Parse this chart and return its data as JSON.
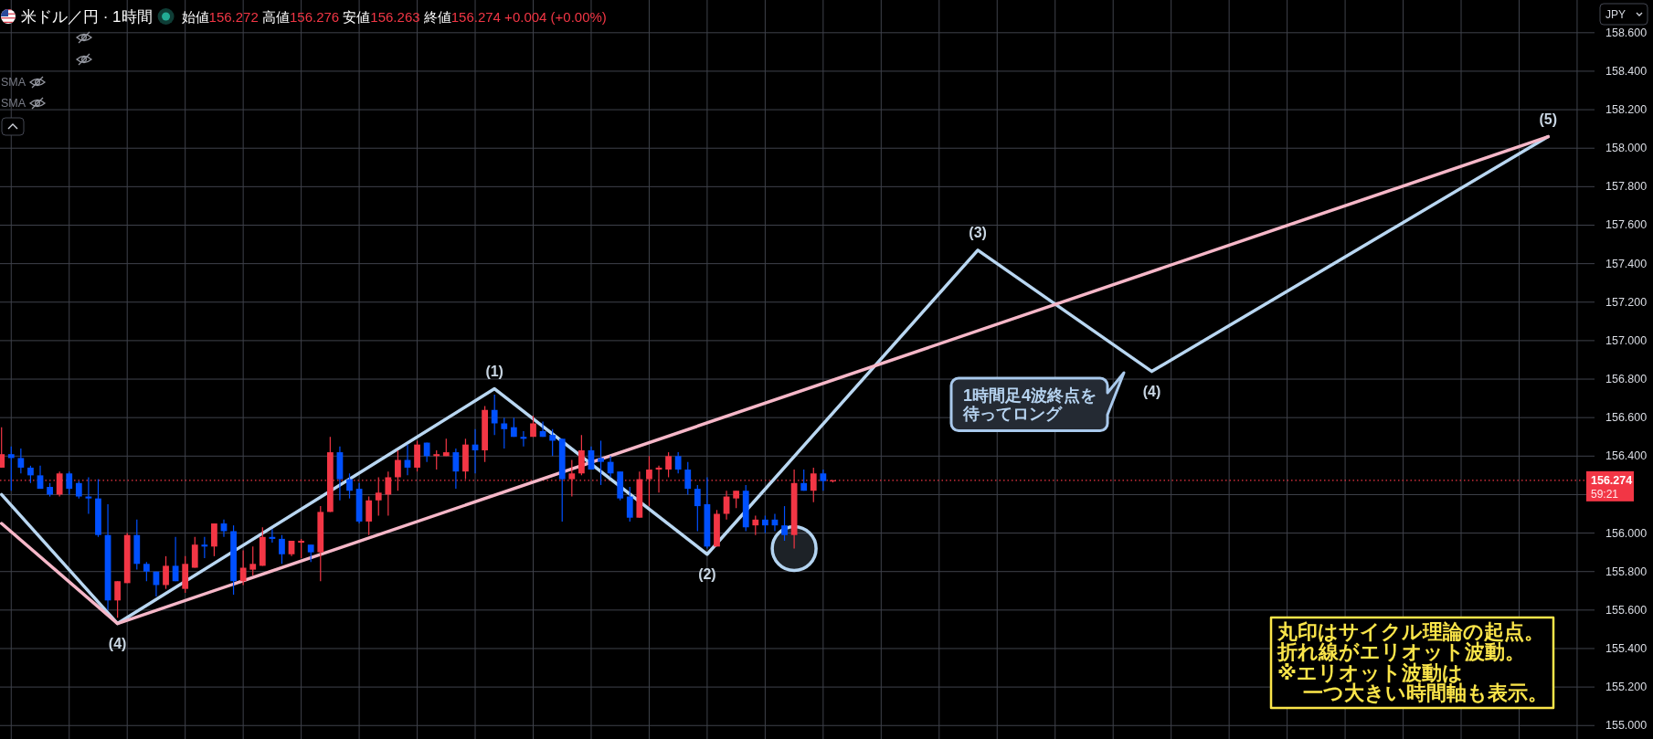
{
  "chart_data": {
    "type": "candlestick",
    "title": "米ドル／円 · 1時間",
    "subtitle": "始値156.272 高値156.276 安値156.263 終値156.274 +0.004 (+0.00%)",
    "ylabel": "JPY",
    "categories": [
      null,
      null,
      null,
      null,
      null,
      null,
      null,
      null,
      null,
      null,
      null,
      null,
      null,
      null,
      null,
      null,
      null,
      null,
      null,
      null,
      null,
      null,
      null,
      null,
      null,
      null,
      null,
      null,
      null,
      null,
      null,
      null,
      null,
      null,
      null,
      null,
      null,
      null,
      null,
      null,
      null,
      null,
      null,
      null,
      null,
      null,
      null,
      null,
      null,
      null,
      null,
      null,
      null,
      null,
      null,
      null,
      null,
      null,
      null,
      null,
      null,
      null,
      null,
      null,
      null,
      null,
      null,
      null,
      null,
      null,
      null,
      null,
      null,
      null,
      null,
      null,
      null,
      null,
      null,
      null,
      null,
      null,
      null,
      null,
      null,
      null,
      null,
      null,
      null,
      null,
      null,
      null,
      null,
      null,
      null,
      null,
      null,
      null,
      null,
      null,
      null,
      null,
      null,
      null,
      null,
      null,
      null,
      null,
      null,
      null,
      null,
      null,
      null,
      null,
      null,
      null,
      null,
      null,
      null,
      null,
      null,
      null,
      null,
      null,
      null,
      null,
      null,
      null,
      null,
      null,
      null,
      null,
      null,
      null,
      null,
      null,
      null,
      null,
      null,
      null,
      null,
      null,
      null,
      null,
      null,
      null,
      null,
      null,
      null,
      null,
      null,
      null,
      null,
      null,
      null,
      null,
      null,
      null,
      null,
      null,
      null,
      null,
      null,
      null,
      null
    ],
    "ohlc": [
      [
        156.34,
        156.55,
        156.34,
        156.41
      ],
      [
        156.41,
        156.45,
        156.22,
        156.39
      ],
      [
        156.39,
        156.44,
        156.31,
        156.34
      ],
      [
        156.34,
        156.35,
        156.26,
        156.3
      ],
      [
        156.3,
        156.35,
        156.23,
        156.23
      ],
      [
        156.24,
        156.26,
        156.19,
        156.2
      ],
      [
        156.2,
        156.32,
        156.19,
        156.31
      ],
      [
        156.31,
        156.32,
        156.2,
        156.23
      ],
      [
        156.26,
        156.27,
        156.18,
        156.19
      ],
      [
        156.19,
        156.29,
        156.1,
        156.18
      ],
      [
        156.18,
        156.28,
        155.98,
        155.99
      ],
      [
        155.99,
        156.15,
        155.6,
        155.65
      ],
      [
        155.65,
        155.75,
        155.56,
        155.75
      ],
      [
        155.74,
        156.0,
        155.74,
        155.99
      ],
      [
        155.99,
        156.07,
        155.81,
        155.84
      ],
      [
        155.84,
        155.85,
        155.75,
        155.8
      ],
      [
        155.8,
        155.8,
        155.67,
        155.73
      ],
      [
        155.73,
        155.88,
        155.71,
        155.83
      ],
      [
        155.83,
        155.98,
        155.75,
        155.75
      ],
      [
        155.71,
        155.88,
        155.69,
        155.84
      ],
      [
        155.82,
        155.98,
        155.82,
        155.94
      ],
      [
        155.94,
        155.98,
        155.87,
        155.93
      ],
      [
        155.93,
        156.05,
        155.88,
        156.05
      ],
      [
        156.05,
        156.07,
        155.98,
        156.01
      ],
      [
        156.01,
        156.04,
        155.68,
        155.75
      ],
      [
        155.75,
        155.91,
        155.73,
        155.82
      ],
      [
        155.81,
        155.93,
        155.78,
        155.84
      ],
      [
        155.83,
        156.03,
        155.83,
        155.98
      ],
      [
        155.98,
        156.02,
        155.95,
        155.97
      ],
      [
        155.97,
        155.99,
        155.84,
        155.89
      ],
      [
        155.89,
        155.96,
        155.88,
        155.96
      ],
      [
        155.95,
        155.97,
        155.87,
        155.96
      ],
      [
        155.94,
        155.94,
        155.85,
        155.9
      ],
      [
        155.9,
        156.14,
        155.75,
        156.11
      ],
      [
        156.11,
        156.5,
        156.11,
        156.42
      ],
      [
        156.42,
        156.45,
        156.17,
        156.28
      ],
      [
        156.28,
        156.31,
        156.18,
        156.22
      ],
      [
        156.23,
        156.26,
        156.05,
        156.06
      ],
      [
        156.06,
        156.19,
        155.99,
        156.17
      ],
      [
        156.17,
        156.29,
        156.09,
        156.21
      ],
      [
        156.2,
        156.32,
        156.09,
        156.29
      ],
      [
        156.29,
        156.43,
        156.22,
        156.38
      ],
      [
        156.38,
        156.46,
        156.3,
        156.34
      ],
      [
        156.34,
        156.48,
        156.32,
        156.46
      ],
      [
        156.47,
        156.47,
        156.37,
        156.4
      ],
      [
        156.4,
        156.43,
        156.33,
        156.41
      ],
      [
        156.4,
        156.49,
        156.4,
        156.42
      ],
      [
        156.42,
        156.44,
        156.23,
        156.32
      ],
      [
        156.32,
        156.49,
        156.28,
        156.46
      ],
      [
        156.46,
        156.54,
        156.31,
        156.43
      ],
      [
        156.43,
        156.66,
        156.37,
        156.64
      ],
      [
        156.64,
        156.72,
        156.51,
        156.57
      ],
      [
        156.57,
        156.6,
        156.44,
        156.54
      ],
      [
        156.55,
        156.6,
        156.5,
        156.5
      ],
      [
        156.5,
        156.53,
        156.45,
        156.49
      ],
      [
        156.5,
        156.61,
        156.5,
        156.57
      ],
      [
        156.53,
        156.58,
        156.5,
        156.5
      ],
      [
        156.51,
        156.54,
        156.4,
        156.48
      ],
      [
        156.49,
        156.49,
        156.06,
        156.28
      ],
      [
        156.28,
        156.38,
        156.19,
        156.31
      ],
      [
        156.31,
        156.51,
        156.3,
        156.43
      ],
      [
        156.43,
        156.45,
        156.33,
        156.33
      ],
      [
        156.39,
        156.48,
        156.25,
        156.37
      ],
      [
        156.37,
        156.4,
        156.29,
        156.31
      ],
      [
        156.32,
        156.32,
        156.17,
        156.18
      ],
      [
        156.19,
        156.24,
        156.06,
        156.08
      ],
      [
        156.08,
        156.32,
        156.08,
        156.28
      ],
      [
        156.28,
        156.4,
        156.14,
        156.33
      ],
      [
        156.33,
        156.35,
        156.21,
        156.34
      ],
      [
        156.33,
        156.42,
        156.29,
        156.4
      ],
      [
        156.4,
        156.42,
        156.31,
        156.33
      ],
      [
        156.33,
        156.37,
        156.2,
        156.23
      ],
      [
        156.23,
        156.25,
        156.01,
        156.14
      ],
      [
        156.15,
        156.29,
        155.92,
        155.93
      ],
      [
        155.93,
        156.12,
        155.93,
        156.1
      ],
      [
        156.1,
        156.22,
        156.07,
        156.19
      ],
      [
        156.18,
        156.22,
        156.13,
        156.22
      ],
      [
        156.22,
        156.25,
        156.01,
        156.03
      ],
      [
        156.04,
        156.09,
        155.99,
        156.07
      ],
      [
        156.07,
        156.09,
        156.0,
        156.04
      ],
      [
        156.07,
        156.1,
        156.01,
        156.04
      ],
      [
        156.04,
        156.14,
        155.96,
        155.99
      ],
      [
        155.99,
        156.33,
        155.92,
        156.26
      ],
      [
        156.26,
        156.33,
        156.22,
        156.22
      ],
      [
        156.22,
        156.34,
        156.16,
        156.31
      ],
      [
        156.31,
        156.33,
        156.22,
        156.27
      ],
      [
        156.272,
        156.276,
        156.263,
        156.274
      ],
      null,
      null,
      null,
      null,
      null,
      null,
      null,
      null,
      null,
      null,
      null,
      null,
      null,
      null,
      null,
      null,
      null,
      null,
      null,
      null,
      null,
      null,
      null,
      null,
      null,
      null,
      null,
      null,
      null,
      null,
      null,
      null,
      null,
      null,
      null,
      null,
      null,
      null,
      null,
      null,
      null,
      null,
      null,
      null,
      null,
      null,
      null,
      null,
      null,
      null,
      null,
      null,
      null,
      null,
      null,
      null,
      null,
      null,
      null,
      null,
      null,
      null,
      null,
      null,
      null,
      null,
      null,
      null,
      null,
      null,
      null,
      null,
      null,
      null,
      null,
      null,
      null,
      null
    ],
    "colors": [
      "#f23645",
      "#0050ff",
      "#0050ff",
      "#0050ff",
      "#0050ff",
      "#0050ff",
      "#f23645",
      "#0050ff",
      "#0050ff",
      "#0050ff",
      "#0050ff",
      "#0050ff",
      "#f23645",
      "#f23645",
      "#0050ff",
      "#0050ff",
      "#0050ff",
      "#f23645",
      "#0050ff",
      "#f23645",
      "#f23645",
      "#0050ff",
      "#f23645",
      "#0050ff",
      "#0050ff",
      "#f23645",
      "#f23645",
      "#f23645",
      "#0050ff",
      "#0050ff",
      "#f23645",
      "#f23645",
      "#0050ff",
      "#f23645",
      "#f23645",
      "#0050ff",
      "#0050ff",
      "#0050ff",
      "#f23645",
      "#f23645",
      "#f23645",
      "#f23645",
      "#0050ff",
      "#f23645",
      "#0050ff",
      "#f23645",
      "#f23645",
      "#0050ff",
      "#f23645",
      "#0050ff",
      "#f23645",
      "#0050ff",
      "#0050ff",
      "#0050ff",
      "#0050ff",
      "#f23645",
      "#0050ff",
      "#0050ff",
      "#0050ff",
      "#f23645",
      "#f23645",
      "#0050ff",
      "#0050ff",
      "#0050ff",
      "#0050ff",
      "#0050ff",
      "#f23645",
      "#f23645",
      "#f23645",
      "#f23645",
      "#0050ff",
      "#0050ff",
      "#0050ff",
      "#0050ff",
      "#f23645",
      "#f23645",
      "#f23645",
      "#0050ff",
      "#f23645",
      "#0050ff",
      "#0050ff",
      "#0050ff",
      "#f23645",
      "#0050ff",
      "#f23645",
      "#0050ff",
      "#f23645",
      null,
      null,
      null,
      null,
      null,
      null,
      null,
      null,
      null,
      null,
      null,
      null,
      null,
      null,
      null,
      null,
      null,
      null,
      null,
      null,
      null,
      null,
      null,
      null,
      null,
      null,
      null,
      null,
      null,
      null,
      null,
      null,
      null,
      null,
      null,
      null,
      null,
      null,
      null,
      null,
      null,
      null,
      null,
      null,
      null,
      null,
      null,
      null,
      null,
      null,
      null,
      null,
      null,
      null,
      null,
      null,
      null,
      null,
      null,
      null,
      null,
      null,
      null,
      null,
      null,
      null,
      null,
      null,
      null,
      null,
      null,
      null,
      null,
      null,
      null,
      null,
      null,
      null
    ],
    "series": [
      {
        "type": "line",
        "color": "#b9d7f2",
        "values": [
          156.2,
          null,
          null,
          null,
          null,
          null,
          null,
          null,
          null,
          null,
          null,
          null,
          155.53,
          null,
          null,
          null,
          null,
          null,
          null,
          null,
          null,
          null,
          null,
          null,
          null,
          null,
          null,
          null,
          null,
          null,
          null,
          null,
          null,
          null,
          null,
          null,
          null,
          null,
          null,
          null,
          null,
          null,
          null,
          null,
          null,
          null,
          null,
          null,
          null,
          null,
          null,
          156.75,
          null,
          null,
          null,
          null,
          null,
          null,
          null,
          null,
          null,
          null,
          null,
          null,
          null,
          null,
          null,
          null,
          null,
          null,
          null,
          null,
          null,
          155.89,
          null,
          null,
          null,
          null,
          null,
          null,
          null,
          null,
          null,
          null,
          null,
          null,
          null,
          null,
          null,
          null,
          null,
          null,
          null,
          null,
          null,
          null,
          null,
          null,
          null,
          null,
          null,
          157.47,
          null,
          null,
          null,
          null,
          null,
          null,
          null,
          null,
          null,
          null,
          null,
          null,
          null,
          null,
          null,
          null,
          null,
          156.84,
          null,
          null,
          null,
          null,
          null,
          null,
          null,
          null,
          null,
          null,
          null,
          null,
          null,
          null,
          null,
          null,
          null,
          null,
          null,
          null,
          null,
          null,
          null,
          null,
          null,
          null,
          null,
          null,
          null,
          null,
          null,
          null,
          null,
          null,
          null,
          null,
          null,
          null,
          null,
          null,
          158.06,
          null,
          null,
          null,
          null
        ]
      },
      {
        "type": "line",
        "color": "#f6b7c8",
        "values": [
          156.05,
          null,
          null,
          null,
          null,
          null,
          null,
          null,
          null,
          null,
          null,
          null,
          155.53,
          null,
          null,
          null,
          null,
          null,
          null,
          null,
          null,
          null,
          null,
          null,
          null,
          null,
          null,
          null,
          null,
          null,
          null,
          null,
          null,
          null,
          null,
          null,
          null,
          null,
          null,
          null,
          null,
          null,
          null,
          null,
          null,
          null,
          null,
          null,
          null,
          null,
          null,
          null,
          null,
          null,
          null,
          null,
          null,
          null,
          null,
          null,
          null,
          null,
          null,
          null,
          null,
          null,
          null,
          null,
          null,
          null,
          null,
          null,
          null,
          null,
          null,
          null,
          null,
          null,
          null,
          null,
          null,
          null,
          null,
          null,
          null,
          null,
          null,
          null,
          null,
          null,
          null,
          null,
          null,
          null,
          null,
          null,
          null,
          null,
          null,
          null,
          null,
          null,
          null,
          null,
          null,
          null,
          null,
          null,
          null,
          null,
          null,
          null,
          null,
          null,
          null,
          null,
          null,
          null,
          null,
          null,
          null,
          null,
          null,
          null,
          null,
          null,
          null,
          null,
          null,
          null,
          null,
          null,
          null,
          null,
          null,
          null,
          null,
          null,
          null,
          null,
          null,
          null,
          null,
          null,
          null,
          null,
          null,
          null,
          null,
          null,
          null,
          null,
          null,
          null,
          null,
          null,
          null,
          null,
          null,
          null,
          158.06,
          null,
          null,
          null,
          null
        ]
      },
      {
        "type": "scatter",
        "color": "#b3d3f0",
        "marker": "circle",
        "values": [
          null,
          null,
          null,
          null,
          null,
          null,
          null,
          null,
          null,
          null,
          null,
          null,
          null,
          null,
          null,
          null,
          null,
          null,
          null,
          null,
          null,
          null,
          null,
          null,
          null,
          null,
          null,
          null,
          null,
          null,
          null,
          null,
          null,
          null,
          null,
          null,
          null,
          null,
          null,
          null,
          null,
          null,
          null,
          null,
          null,
          null,
          null,
          null,
          null,
          null,
          null,
          null,
          null,
          null,
          null,
          null,
          null,
          null,
          null,
          null,
          null,
          null,
          null,
          null,
          null,
          null,
          null,
          null,
          null,
          null,
          null,
          null,
          null,
          null,
          null,
          null,
          null,
          null,
          null,
          null,
          null,
          null,
          155.92,
          null,
          null,
          null,
          null,
          null,
          null,
          null,
          null,
          null,
          null,
          null,
          null,
          null,
          null,
          null,
          null,
          null,
          null,
          null,
          null,
          null,
          null,
          null,
          null,
          null,
          null,
          null,
          null,
          null,
          null,
          null,
          null,
          null,
          null,
          null,
          null,
          null,
          null,
          null,
          null,
          null,
          null,
          null,
          null,
          null,
          null,
          null,
          null,
          null,
          null,
          null,
          null,
          null,
          null,
          null,
          null,
          null,
          null,
          null,
          null,
          null,
          null,
          null,
          null,
          null,
          null,
          null,
          null,
          null,
          null,
          null,
          null,
          null,
          null,
          null,
          null,
          null,
          null,
          null,
          null,
          null,
          null
        ]
      }
    ],
    "ylim": [
      154.93,
      158.77
    ],
    "yticks": [
      {
        "value": 155,
        "label": "155.000"
      },
      {
        "value": 155.2,
        "label": "155.200"
      },
      {
        "value": 155.4,
        "label": "155.400"
      },
      {
        "value": 155.6,
        "label": "155.600"
      },
      {
        "value": 155.8,
        "label": "155.800"
      },
      {
        "value": 156,
        "label": "156.000"
      },
      {
        "value": 156.2,
        "label": null
      },
      {
        "value": 156.4,
        "label": "156.400"
      },
      {
        "value": 156.6,
        "label": "156.600"
      },
      {
        "value": 156.8,
        "label": "156.800"
      },
      {
        "value": 157,
        "label": "157.000"
      },
      {
        "value": 157.2,
        "label": "157.200"
      },
      {
        "value": 157.4,
        "label": "157.400"
      },
      {
        "value": 157.6,
        "label": "157.600"
      },
      {
        "value": 157.8,
        "label": "157.800"
      },
      {
        "value": 158,
        "label": "158.000"
      },
      {
        "value": 158.2,
        "label": "158.200"
      },
      {
        "value": 158.4,
        "label": "158.400"
      },
      {
        "value": 158.6,
        "label": "158.600"
      }
    ],
    "grid": true,
    "ref_lines": [
      {
        "axis": "y",
        "value": 156.274,
        "label": "156.274",
        "color": "#f23645",
        "line_style": "dotted"
      }
    ],
    "annotations": [
      "1時間足4波終点を待ってロング",
      "丸印はサイクル理論の起点。",
      "折れ線がエリオット波動。",
      "※エリオット波動は",
      "一つ大きい時間軸も表示。",
      "59:21",
      "SMA",
      "SMA",
      {
        "text": "(4)",
        "y": 155.53
      },
      {
        "text": "(1)",
        "y": 156.75
      },
      {
        "text": "(2)",
        "y": 155.89
      },
      {
        "text": "(3)",
        "y": 157.47
      },
      {
        "text": "(4)",
        "y": 156.84
      },
      {
        "text": "(5)",
        "y": 158.06
      }
    ]
  }
}
